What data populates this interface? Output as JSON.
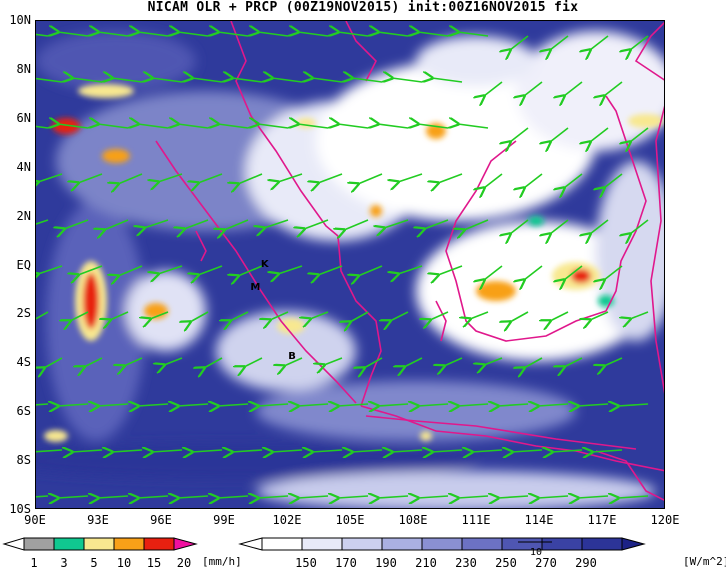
{
  "title": "NICAM OLR + PRCP (00Z19NOV2015) init:00Z16NOV2015 fix",
  "map": {
    "lat_axis": [
      "10N",
      "8N",
      "6N",
      "4N",
      "2N",
      "EQ",
      "2S",
      "4S",
      "6S",
      "8S",
      "10S"
    ],
    "lon_axis": [
      "90E",
      "93E",
      "96E",
      "99E",
      "102E",
      "105E",
      "108E",
      "111E",
      "114E",
      "117E",
      "120E"
    ],
    "lat_range": [
      -10,
      10
    ],
    "lon_range": [
      90,
      120
    ],
    "places": [
      {
        "label": "K",
        "lon": 100.9,
        "lat": 0.0
      },
      {
        "label": "M",
        "lon": 100.4,
        "lat": -0.95
      },
      {
        "label": "B",
        "lon": 102.2,
        "lat": -3.8
      }
    ],
    "wind_color": "#22cc22",
    "coast_color": "#e0188c"
  },
  "colorbars": {
    "precip": {
      "ticks": [
        "1",
        "3",
        "5",
        "10",
        "15",
        "20"
      ],
      "unit": "[mm/h]",
      "colors": [
        "#a0a0a0",
        "#10c890",
        "#f8e890",
        "#f8a018",
        "#e82010",
        "#f010a0"
      ]
    },
    "olr": {
      "ticks": [
        "150",
        "170",
        "190",
        "210",
        "230",
        "250",
        "270",
        "290"
      ],
      "unit": "[W/m^2]",
      "colors": [
        "#ffffff",
        "#e8eaf8",
        "#ccd0ef",
        "#aab0e2",
        "#8a90d2",
        "#6c72c4",
        "#4f56b2",
        "#3a42a4",
        "#2c3498",
        "#1c2286"
      ]
    },
    "vector_ref": "10"
  }
}
